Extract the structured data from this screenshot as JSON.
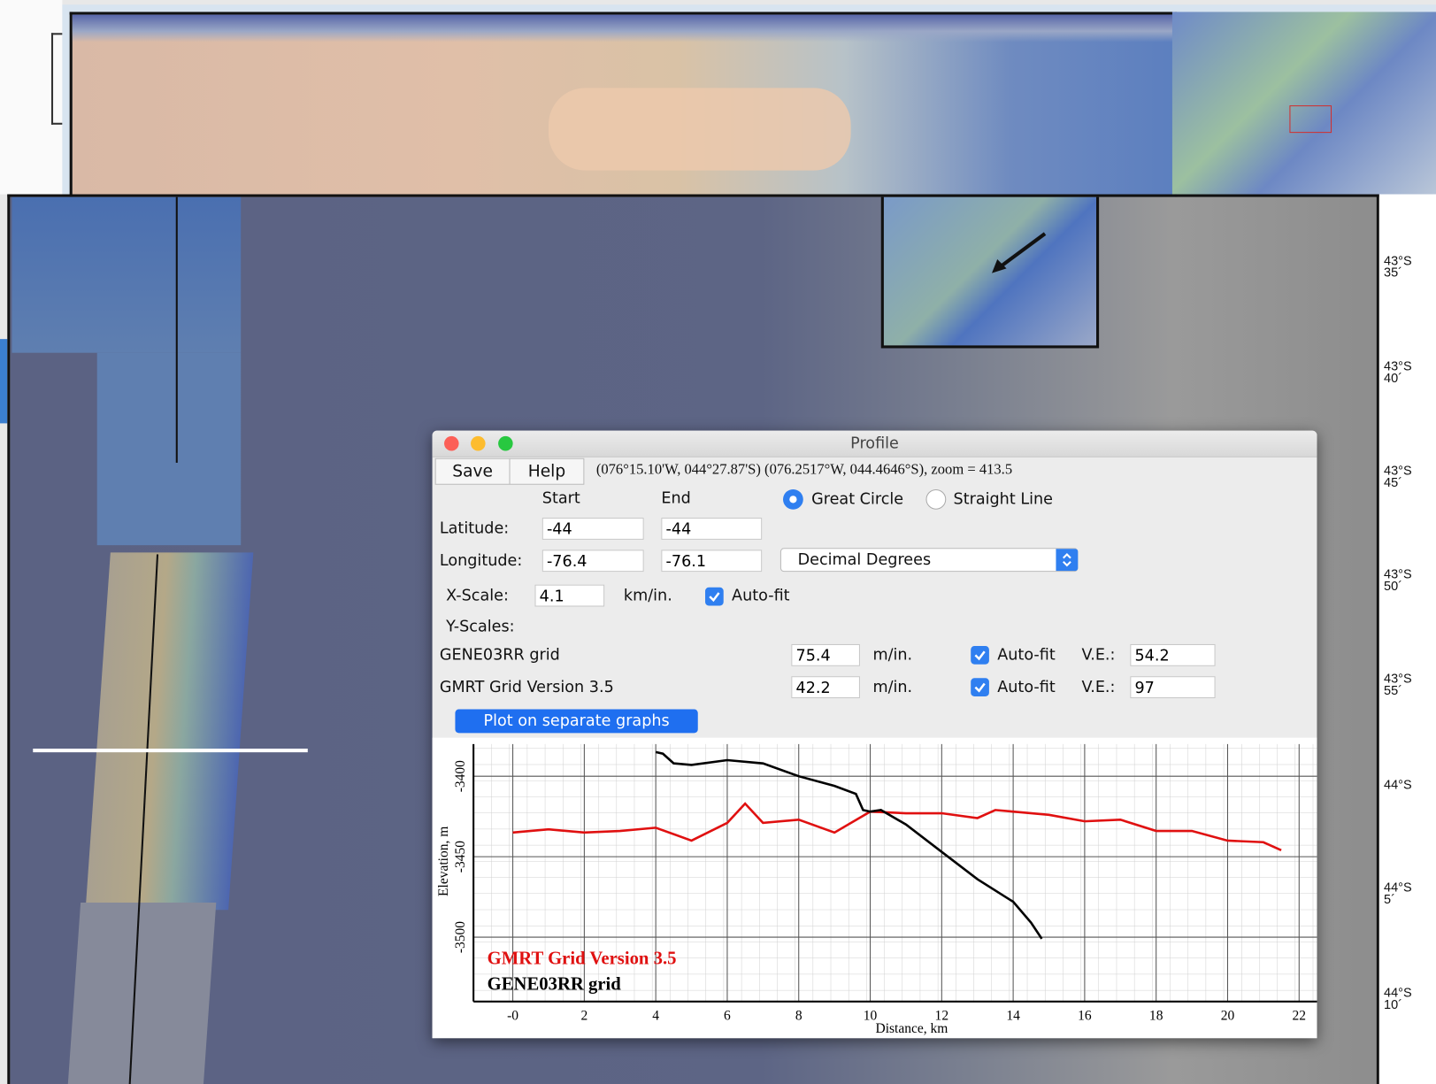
{
  "window": {
    "title": "Profile"
  },
  "toolbar": {
    "save": "Save",
    "help": "Help",
    "position": "(076°15.10'W, 044°27.87'S) (076.2517°W, 044.4646°S), zoom = 413.5"
  },
  "form": {
    "start": "Start",
    "end": "End",
    "great_circle": "Great Circle",
    "straight_line": "Straight Line",
    "latitude_label": "Latitude:",
    "lat_start": "-44",
    "lat_end": "-44",
    "longitude_label": "Longitude:",
    "lon_start": "-76.4",
    "lon_end": "-76.1",
    "units": "Decimal Degrees",
    "x_scale_label": "X-Scale:",
    "x_scale": "4.1",
    "x_unit": "km/in.",
    "auto_fit": "Auto-fit",
    "y_scales_label": "Y-Scales:",
    "grids": [
      {
        "name": "GENE03RR grid",
        "scale": "75.4",
        "unit": "m/in.",
        "auto_fit": "Auto-fit",
        "ve_label": "V.E.:",
        "ve": "54.2"
      },
      {
        "name": "GMRT Grid Version 3.5",
        "scale": "42.2",
        "unit": "m/in.",
        "auto_fit": "Auto-fit",
        "ve_label": "V.E.:",
        "ve": "97"
      }
    ],
    "plot_button": "Plot on separate graphs"
  },
  "map": {
    "lat_labels": [
      {
        "deg": "43°S",
        "min": "35´"
      },
      {
        "deg": "43°S",
        "min": "40´"
      },
      {
        "deg": "43°S",
        "min": "45´"
      },
      {
        "deg": "43°S",
        "min": "50´"
      },
      {
        "deg": "43°S",
        "min": "55´"
      },
      {
        "deg": "44°S"
      },
      {
        "deg": "44°S",
        "min": "5´"
      },
      {
        "deg": "44°S",
        "min": "10´"
      }
    ]
  },
  "chart_data": {
    "type": "line",
    "x_label": "Distance, km",
    "y_label": "Elevation, m",
    "xlim": [
      -1.1,
      22.5
    ],
    "ylim": [
      -3540,
      -3380
    ],
    "xticks": [
      {
        "value": 0,
        "label": "-0"
      },
      2,
      4,
      6,
      8,
      10,
      12,
      14,
      16,
      18,
      20,
      22
    ],
    "yticks": [
      -3400,
      -3450,
      -3500
    ],
    "grid": true,
    "series": [
      {
        "name": "GMRT Grid Version 3.5",
        "color": "#e01010",
        "x": [
          0,
          1,
          2,
          3,
          4,
          5,
          6,
          6.5,
          7,
          8,
          9,
          10,
          11,
          12,
          13,
          13.5,
          14,
          15,
          16,
          17,
          18,
          19,
          20,
          21,
          21.5
        ],
        "values": [
          -3435,
          -3433,
          -3435,
          -3434,
          -3432,
          -3440,
          -3429,
          -3417,
          -3429,
          -3427,
          -3435,
          -3422,
          -3423,
          -3423,
          -3426,
          -3421,
          -3422,
          -3424,
          -3428,
          -3427,
          -3434,
          -3434,
          -3440,
          -3441,
          -3446
        ]
      },
      {
        "name": "GENE03RR grid",
        "color": "#000000",
        "x": [
          4,
          4.2,
          4.5,
          5,
          6,
          7,
          8,
          9,
          9.6,
          9.8,
          10,
          10.3,
          11,
          12,
          13,
          14,
          14.5,
          14.8
        ],
        "values": [
          -3385,
          -3386,
          -3392,
          -3393,
          -3390,
          -3392,
          -3400,
          -3406,
          -3411,
          -3421,
          -3422,
          -3421,
          -3430,
          -3447,
          -3464,
          -3478,
          -3491,
          -3501
        ]
      }
    ]
  }
}
